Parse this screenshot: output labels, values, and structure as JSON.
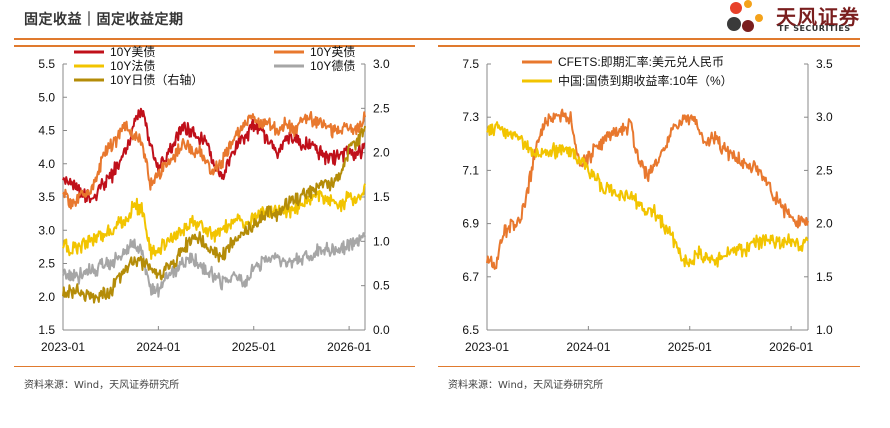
{
  "header": {
    "title": "固定收益｜固定收益定期"
  },
  "logo": {
    "name": "天风证券",
    "sub": "TF SECURITIES",
    "colors": [
      "#e8412a",
      "#f4a21a",
      "#7a1e1e",
      "#3a3a3a"
    ]
  },
  "footer": {
    "left_source": "资料来源：Wind，天风证券研究所",
    "right_source": "资料来源：Wind，天风证券研究所"
  },
  "chart_data": [
    {
      "type": "line",
      "title": "",
      "x_ticks": [
        "2023-01",
        "2024-01",
        "2025-01",
        "2026-01"
      ],
      "x_tick_positions": [
        0,
        12,
        24,
        36
      ],
      "x_range": [
        0,
        38
      ],
      "y_left": {
        "range": [
          1.5,
          5.5
        ],
        "ticks": [
          "1.5",
          "2.0",
          "2.5",
          "3.0",
          "3.5",
          "4.0",
          "4.5",
          "5.0",
          "5.5"
        ]
      },
      "y_right": {
        "range": [
          0.0,
          3.0
        ],
        "ticks": [
          "0.0",
          "0.5",
          "1.0",
          "1.5",
          "2.0",
          "2.5",
          "3.0"
        ]
      },
      "series": [
        {
          "name": "10Y美债",
          "color": "#c0101a",
          "axis": "left",
          "x": [
            0,
            1,
            2,
            3,
            4,
            5,
            6,
            7,
            8,
            9,
            10,
            11,
            12,
            13,
            14,
            15,
            16,
            17,
            18,
            19,
            20,
            21,
            22,
            23,
            24,
            25,
            26,
            27,
            28,
            29,
            30,
            31,
            32,
            33,
            34,
            35,
            36,
            37,
            38
          ],
          "values": [
            3.8,
            3.7,
            3.6,
            3.5,
            3.5,
            3.7,
            3.8,
            4.0,
            4.2,
            4.6,
            4.8,
            4.3,
            3.9,
            4.1,
            4.3,
            4.6,
            4.5,
            4.4,
            4.3,
            4.0,
            3.8,
            4.1,
            4.3,
            4.4,
            4.6,
            4.5,
            4.3,
            4.2,
            4.4,
            4.4,
            4.3,
            4.3,
            4.2,
            4.1,
            4.1,
            4.1,
            4.2,
            4.1,
            4.3
          ]
        },
        {
          "name": "10Y英债",
          "color": "#e8782e",
          "axis": "left",
          "x": [
            0,
            1,
            2,
            3,
            4,
            5,
            6,
            7,
            8,
            9,
            10,
            11,
            12,
            13,
            14,
            15,
            16,
            17,
            18,
            19,
            20,
            21,
            22,
            23,
            24,
            25,
            26,
            27,
            28,
            29,
            30,
            31,
            32,
            33,
            34,
            35,
            36,
            37,
            38
          ],
          "values": [
            3.6,
            3.4,
            3.5,
            3.6,
            3.7,
            4.1,
            4.3,
            4.4,
            4.6,
            4.4,
            4.3,
            3.7,
            3.8,
            4.0,
            4.1,
            4.3,
            4.2,
            4.2,
            4.0,
            3.9,
            4.0,
            4.3,
            4.5,
            4.6,
            4.7,
            4.6,
            4.6,
            4.5,
            4.6,
            4.5,
            4.6,
            4.7,
            4.6,
            4.6,
            4.5,
            4.5,
            4.5,
            4.5,
            4.7
          ]
        },
        {
          "name": "10Y法债",
          "color": "#f2c400",
          "axis": "left",
          "x": [
            0,
            1,
            2,
            3,
            4,
            5,
            6,
            7,
            8,
            9,
            10,
            11,
            12,
            13,
            14,
            15,
            16,
            17,
            18,
            19,
            20,
            21,
            22,
            23,
            24,
            25,
            26,
            27,
            28,
            29,
            30,
            31,
            32,
            33,
            34,
            35,
            36,
            37,
            38
          ],
          "values": [
            2.8,
            2.7,
            2.7,
            2.8,
            2.9,
            2.9,
            3.0,
            3.1,
            3.2,
            3.4,
            3.3,
            2.7,
            2.7,
            2.8,
            2.9,
            3.0,
            3.1,
            3.1,
            3.0,
            2.9,
            3.0,
            3.1,
            3.2,
            3.1,
            3.2,
            3.3,
            3.3,
            3.3,
            3.3,
            3.3,
            3.4,
            3.5,
            3.5,
            3.5,
            3.4,
            3.4,
            3.5,
            3.4,
            3.7
          ]
        },
        {
          "name": "10Y德债",
          "color": "#a6a6a6",
          "axis": "left",
          "x": [
            0,
            1,
            2,
            3,
            4,
            5,
            6,
            7,
            8,
            9,
            10,
            11,
            12,
            13,
            14,
            15,
            16,
            17,
            18,
            19,
            20,
            21,
            22,
            23,
            24,
            25,
            26,
            27,
            28,
            29,
            30,
            31,
            32,
            33,
            34,
            35,
            36,
            37,
            38
          ],
          "values": [
            2.4,
            2.3,
            2.3,
            2.4,
            2.4,
            2.5,
            2.5,
            2.6,
            2.7,
            2.8,
            2.7,
            2.1,
            2.1,
            2.3,
            2.4,
            2.5,
            2.6,
            2.5,
            2.4,
            2.3,
            2.2,
            2.3,
            2.3,
            2.2,
            2.4,
            2.5,
            2.6,
            2.6,
            2.5,
            2.5,
            2.6,
            2.6,
            2.7,
            2.7,
            2.7,
            2.7,
            2.8,
            2.8,
            2.9
          ]
        },
        {
          "name": "10Y日债（右轴）",
          "color": "#b48c08",
          "axis": "right",
          "x": [
            0,
            1,
            2,
            3,
            4,
            5,
            6,
            7,
            8,
            9,
            10,
            11,
            12,
            13,
            14,
            15,
            16,
            17,
            18,
            19,
            20,
            21,
            22,
            23,
            24,
            25,
            26,
            27,
            28,
            29,
            30,
            31,
            32,
            33,
            34,
            35,
            36,
            37,
            38
          ],
          "values": [
            0.45,
            0.45,
            0.45,
            0.4,
            0.35,
            0.4,
            0.45,
            0.6,
            0.7,
            0.8,
            0.75,
            0.7,
            0.6,
            0.7,
            0.75,
            0.9,
            1.0,
            1.05,
            0.95,
            0.85,
            0.85,
            0.95,
            1.05,
            1.1,
            1.2,
            1.3,
            1.35,
            1.3,
            1.4,
            1.45,
            1.5,
            1.55,
            1.6,
            1.65,
            1.65,
            1.8,
            2.05,
            2.1,
            2.3
          ]
        }
      ]
    },
    {
      "type": "line",
      "title": "",
      "x_ticks": [
        "2023-01",
        "2024-01",
        "2025-01",
        "2026-01"
      ],
      "x_tick_positions": [
        0,
        12,
        24,
        36
      ],
      "x_range": [
        0,
        38
      ],
      "y_left": {
        "range": [
          6.5,
          7.5
        ],
        "ticks": [
          "6.5",
          "6.7",
          "6.9",
          "7.1",
          "7.3",
          "7.5"
        ]
      },
      "y_right": {
        "range": [
          1.0,
          3.5
        ],
        "ticks": [
          "1.0",
          "1.5",
          "2.0",
          "2.5",
          "3.0",
          "3.5"
        ]
      },
      "series": [
        {
          "name": "CFETS:即期汇率:美元兑人民币",
          "color": "#e8782e",
          "axis": "left",
          "x": [
            0,
            1,
            2,
            3,
            4,
            5,
            6,
            7,
            8,
            9,
            10,
            11,
            12,
            13,
            14,
            15,
            16,
            17,
            18,
            19,
            20,
            21,
            22,
            23,
            24,
            25,
            26,
            27,
            28,
            29,
            30,
            31,
            32,
            33,
            34,
            35,
            36,
            37,
            38
          ],
          "values": [
            6.78,
            6.75,
            6.87,
            6.9,
            6.92,
            7.05,
            7.22,
            7.28,
            7.3,
            7.31,
            7.29,
            7.12,
            7.15,
            7.18,
            7.22,
            7.24,
            7.25,
            7.27,
            7.13,
            7.08,
            7.12,
            7.18,
            7.25,
            7.29,
            7.3,
            7.27,
            7.2,
            7.22,
            7.18,
            7.16,
            7.14,
            7.12,
            7.1,
            7.06,
            7.0,
            6.96,
            6.91,
            6.9,
            6.91
          ]
        },
        {
          "name": "中国:国债到期收益率:10年（%）",
          "color": "#f2c400",
          "axis": "right",
          "x": [
            0,
            1,
            2,
            3,
            4,
            5,
            6,
            7,
            8,
            9,
            10,
            11,
            12,
            13,
            14,
            15,
            16,
            17,
            18,
            19,
            20,
            21,
            22,
            23,
            24,
            25,
            26,
            27,
            28,
            29,
            30,
            31,
            32,
            33,
            34,
            35,
            36,
            37,
            38
          ],
          "values": [
            2.88,
            2.9,
            2.88,
            2.85,
            2.78,
            2.7,
            2.65,
            2.65,
            2.68,
            2.7,
            2.67,
            2.58,
            2.52,
            2.42,
            2.32,
            2.3,
            2.28,
            2.25,
            2.18,
            2.12,
            2.1,
            1.98,
            1.85,
            1.68,
            1.62,
            1.75,
            1.68,
            1.65,
            1.7,
            1.72,
            1.75,
            1.78,
            1.82,
            1.85,
            1.84,
            1.83,
            1.82,
            1.8,
            1.84
          ]
        }
      ]
    }
  ]
}
